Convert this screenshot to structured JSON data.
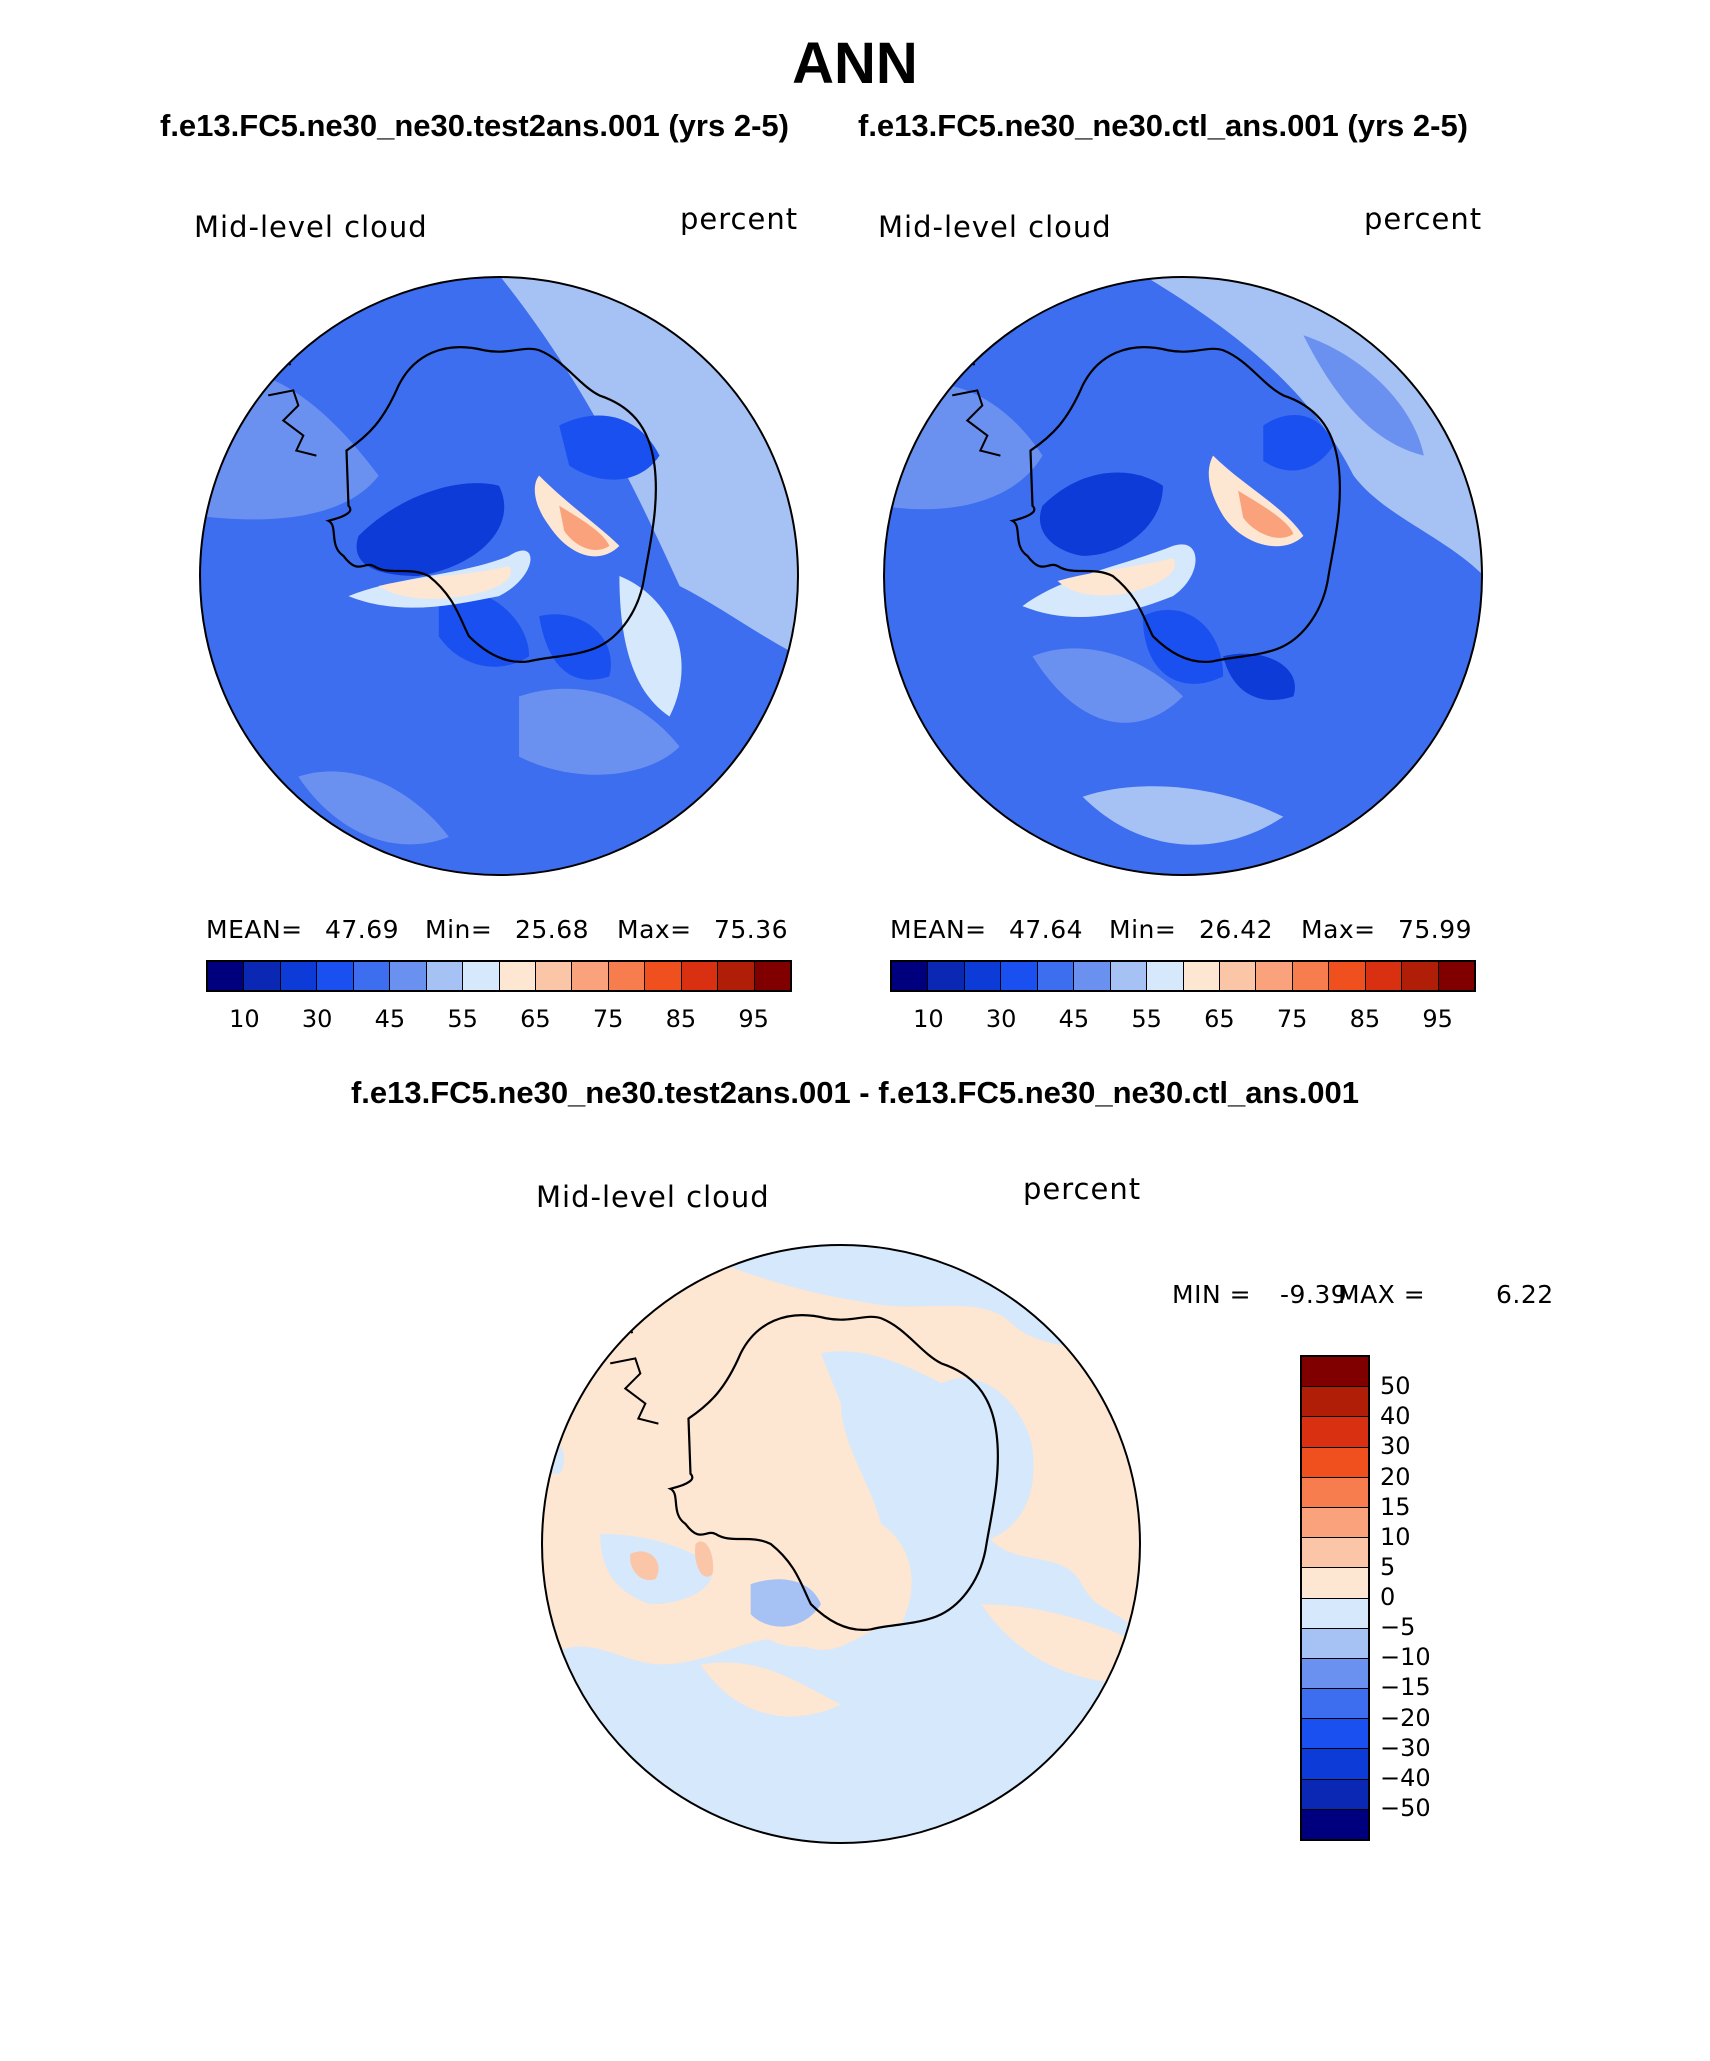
{
  "main_title": "ANN",
  "case_titles": {
    "left": "f.e13.FC5.ne30_ne30.test2ans.001 (yrs 2-5)",
    "right": "f.e13.FC5.ne30_ne30.ctl_ans.001 (yrs 2-5)"
  },
  "diff_title": "f.e13.FC5.ne30_ne30.test2ans.001 - f.e13.FC5.ne30_ne30.ctl_ans.001",
  "panels": [
    {
      "variable": "Mid-level cloud",
      "units": "percent",
      "mean_label": "MEAN=",
      "mean": "47.69",
      "min_label": "Min=",
      "min": "25.68",
      "max_label": "Max=",
      "max": "75.36"
    },
    {
      "variable": "Mid-level cloud",
      "units": "percent",
      "mean_label": "MEAN=",
      "mean": "47.64",
      "min_label": "Min=",
      "min": "26.42",
      "max_label": "Max=",
      "max": "75.99"
    }
  ],
  "diff_panel": {
    "variable": "Mid-level cloud",
    "units": "percent",
    "min_label": "MIN =",
    "min": "-9.39",
    "max_label": "MAX =",
    "max": "6.22"
  },
  "abs_colorbar": {
    "colors": [
      "#00007f",
      "#0a28b4",
      "#0d3bd8",
      "#1a50f0",
      "#3d6ef0",
      "#6b91f0",
      "#a6c2f5",
      "#d6e8fb",
      "#fde6d2",
      "#fbc6a8",
      "#f9a27c",
      "#f77c4e",
      "#f0501e",
      "#d83010",
      "#b01e08",
      "#800000"
    ],
    "ticks": [
      "10",
      "30",
      "45",
      "55",
      "65",
      "75",
      "85",
      "95"
    ]
  },
  "diff_colorbar": {
    "colors": [
      "#800000",
      "#b01e08",
      "#d83010",
      "#f0501e",
      "#f77c4e",
      "#f9a27c",
      "#fbc6a8",
      "#fde6d2",
      "#d6e8fb",
      "#a6c2f5",
      "#6b91f0",
      "#3d6ef0",
      "#1a50f0",
      "#0d3bd8",
      "#0a28b4",
      "#00007f"
    ],
    "ticks": [
      "50",
      "40",
      "30",
      "20",
      "15",
      "10",
      "5",
      "0",
      "−5",
      "−10",
      "−15",
      "−20",
      "−30",
      "−40",
      "−50"
    ]
  }
}
